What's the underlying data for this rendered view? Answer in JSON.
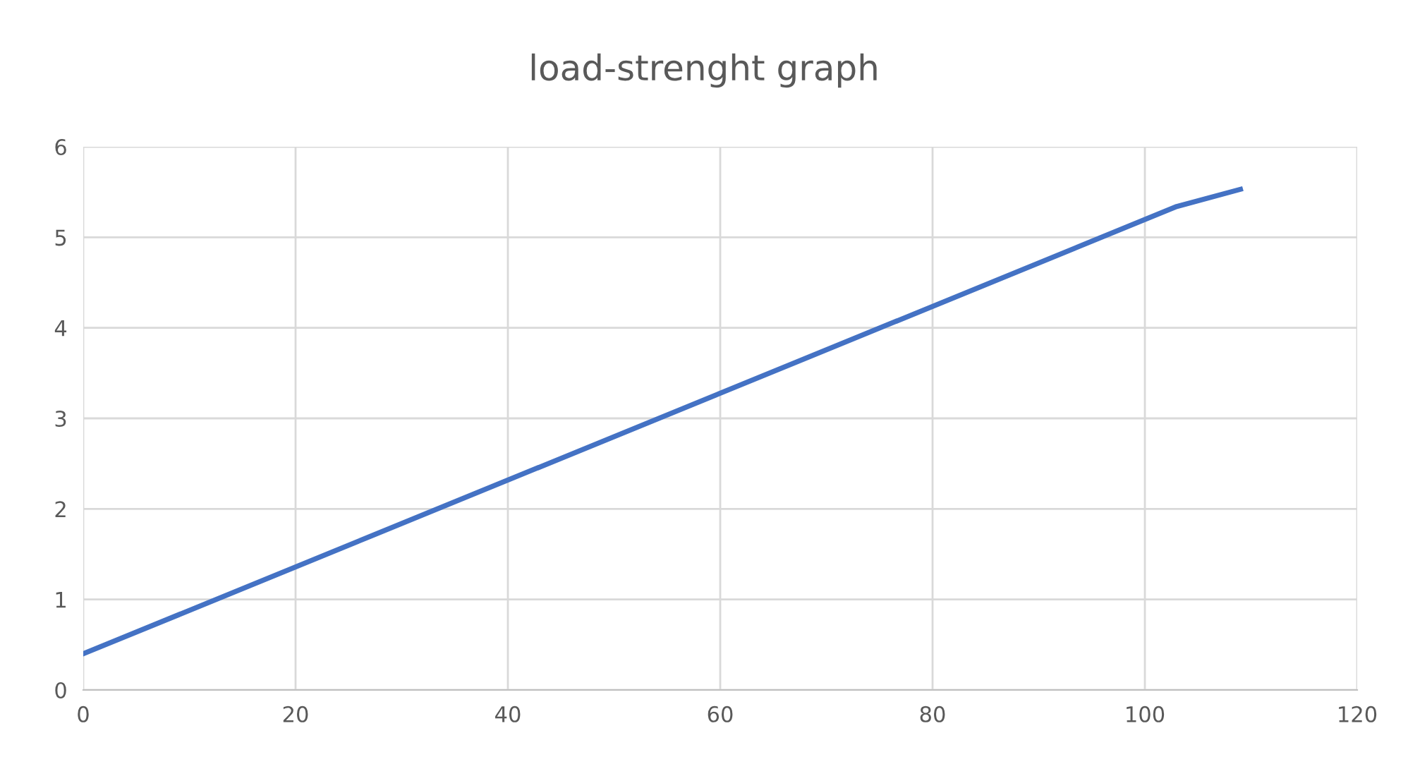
{
  "chart_data": {
    "type": "line",
    "title": "load-strenght graph",
    "x": [
      0,
      103,
      109
    ],
    "series": [
      {
        "color": "#4472c4",
        "values": [
          0.4,
          5.34,
          5.53
        ]
      }
    ],
    "xlim": [
      0,
      120
    ],
    "xticks": [
      0,
      20,
      40,
      60,
      80,
      100,
      120
    ],
    "ylim": [
      0,
      6
    ],
    "yticks": [
      0,
      1,
      2,
      3,
      4,
      5,
      6
    ],
    "grid": true,
    "legend": false,
    "marker": "none",
    "line_style": "solid"
  }
}
